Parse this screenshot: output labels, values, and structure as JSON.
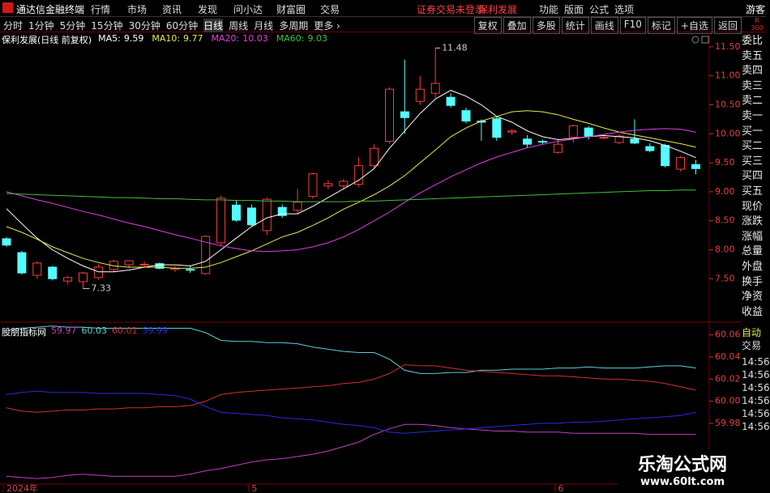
{
  "menu_bar": {
    "app_name": "通达信金融终端",
    "menus": [
      "行情",
      "市场",
      "资讯",
      "发现",
      "问小达",
      "财富圈",
      "交易"
    ],
    "notice": "证券交易未登录",
    "stock": "保利发展",
    "right_menus": [
      "功能",
      "版面",
      "公式",
      "选项"
    ],
    "user": "游客"
  },
  "toolbar": {
    "periods": [
      "分时",
      "1分钟",
      "5分钟",
      "15分钟",
      "30分钟",
      "60分钟",
      "日线",
      "周线",
      "月线",
      "多周期",
      "更多 ›"
    ],
    "buttons": [
      "复权",
      "叠加",
      "多股",
      "统计",
      "画线",
      "F10",
      "标记",
      "+自选",
      "返回"
    ],
    "badge": [
      "R",
      "300"
    ]
  },
  "side_panel": {
    "labels": [
      "委比",
      "卖五",
      "卖四",
      "卖三",
      "卖二",
      "卖一",
      "买一",
      "买二",
      "买三",
      "买四",
      "买五",
      "现价",
      "涨跌",
      "涨幅",
      "总量",
      "外盘",
      "换手",
      "净资",
      "收益"
    ],
    "trade_header": [
      "自动",
      "交易"
    ],
    "times": [
      "14:56",
      "14:56",
      "14:56",
      "14:56",
      "14:56",
      "14:56"
    ]
  },
  "watermark": {
    "title": "乐淘公式网",
    "url": "www.60lt.com"
  },
  "chart_data": [
    {
      "type": "candlestick",
      "title": "保利发展(日线 前复权)",
      "categories": [
        "2024年",
        null,
        null,
        null,
        null,
        null,
        null,
        null,
        null,
        null,
        null,
        null,
        null,
        null,
        null,
        null,
        "5",
        null,
        null,
        null,
        null,
        null,
        null,
        null,
        null,
        null,
        null,
        null,
        null,
        null,
        null,
        null,
        null,
        null,
        null,
        null,
        "6",
        null,
        null,
        null,
        null,
        null,
        null,
        null,
        null,
        null
      ],
      "open": [
        8.19,
        7.95,
        7.56,
        7.7,
        7.46,
        7.45,
        7.52,
        7.66,
        7.74,
        7.74,
        7.76,
        7.66,
        7.66,
        7.59,
        8.12,
        8.77,
        8.72,
        8.33,
        8.73,
        8.68,
        8.92,
        9.1,
        9.1,
        9.13,
        9.45,
        9.87,
        10.38,
        10.56,
        10.7,
        10.63,
        10.4,
        10.22,
        10.26,
        10.03,
        9.91,
        9.87,
        9.68,
        9.94,
        10.1,
        9.93,
        9.85,
        9.91,
        9.78,
        9.8,
        9.39,
        9.47
      ],
      "high": [
        8.22,
        7.98,
        7.8,
        7.72,
        7.55,
        7.62,
        7.75,
        7.83,
        7.82,
        7.8,
        7.78,
        7.72,
        7.72,
        8.25,
        8.93,
        8.85,
        8.78,
        8.9,
        8.78,
        9.05,
        9.33,
        9.2,
        9.22,
        9.6,
        9.82,
        10.8,
        11.28,
        11.0,
        11.48,
        10.7,
        10.45,
        10.25,
        10.3,
        10.08,
        9.98,
        9.9,
        9.9,
        10.16,
        10.13,
        9.98,
        10.0,
        10.25,
        9.84,
        9.83,
        9.62,
        9.55
      ],
      "low": [
        8.05,
        7.57,
        7.5,
        7.47,
        7.4,
        7.33,
        7.48,
        7.62,
        7.68,
        7.7,
        7.66,
        7.62,
        7.6,
        7.57,
        8.08,
        8.48,
        8.4,
        8.25,
        8.55,
        8.63,
        8.88,
        9.05,
        9.06,
        9.08,
        9.4,
        9.83,
        10.0,
        10.5,
        10.62,
        10.45,
        10.18,
        9.88,
        9.88,
        9.98,
        9.76,
        9.82,
        9.66,
        9.85,
        9.9,
        9.9,
        9.82,
        9.82,
        9.68,
        9.42,
        9.35,
        9.3
      ],
      "close": [
        8.08,
        7.6,
        7.77,
        7.5,
        7.52,
        7.6,
        7.7,
        7.8,
        7.81,
        7.75,
        7.68,
        7.68,
        7.65,
        8.23,
        8.89,
        8.51,
        8.43,
        8.87,
        8.59,
        8.82,
        9.31,
        9.14,
        9.18,
        9.45,
        9.75,
        10.77,
        10.28,
        10.77,
        10.87,
        10.49,
        10.22,
        10.2,
        9.94,
        10.05,
        9.82,
        9.86,
        9.82,
        10.14,
        9.96,
        9.94,
        9.96,
        9.84,
        9.71,
        9.45,
        9.59,
        9.4
      ],
      "up_color": "#ff3c3c",
      "down_color": "#54fcfc",
      "series": [
        {
          "name": "MA5:",
          "color": "#ffffff",
          "values": [
            8.71,
            8.45,
            8.2,
            8.0,
            7.85,
            7.72,
            7.62,
            7.62,
            7.65,
            7.7,
            7.74,
            7.74,
            7.72,
            7.8,
            8.0,
            8.2,
            8.4,
            8.55,
            8.62,
            8.62,
            8.75,
            8.9,
            9.05,
            9.2,
            9.4,
            9.75,
            10.05,
            10.35,
            10.6,
            10.75,
            10.65,
            10.5,
            10.3,
            10.2,
            10.05,
            9.95,
            9.9,
            9.92,
            9.95,
            9.97,
            9.95,
            9.93,
            9.88,
            9.8,
            9.7,
            9.59
          ]
        },
        {
          "name": "MA10:",
          "color": "#e8e84a",
          "values": [
            8.4,
            8.3,
            8.18,
            8.05,
            7.95,
            7.85,
            7.78,
            7.72,
            7.7,
            7.7,
            7.7,
            7.68,
            7.68,
            7.7,
            7.78,
            7.88,
            7.98,
            8.1,
            8.22,
            8.3,
            8.42,
            8.55,
            8.7,
            8.82,
            8.95,
            9.1,
            9.28,
            9.5,
            9.72,
            9.95,
            10.1,
            10.22,
            10.3,
            10.38,
            10.4,
            10.38,
            10.33,
            10.25,
            10.18,
            10.1,
            10.03,
            9.98,
            9.93,
            9.88,
            9.83,
            9.77
          ]
        },
        {
          "name": "MA20:",
          "color": "#e040e0",
          "values": [
            9.0,
            8.93,
            8.86,
            8.8,
            8.73,
            8.66,
            8.6,
            8.53,
            8.46,
            8.4,
            8.33,
            8.26,
            8.2,
            8.13,
            8.07,
            8.02,
            7.98,
            7.97,
            7.98,
            8.0,
            8.05,
            8.12,
            8.22,
            8.35,
            8.5,
            8.65,
            8.82,
            8.98,
            9.12,
            9.26,
            9.38,
            9.5,
            9.6,
            9.68,
            9.76,
            9.82,
            9.87,
            9.91,
            9.95,
            9.99,
            10.03,
            10.06,
            10.08,
            10.09,
            10.08,
            10.03
          ]
        },
        {
          "name": "MA60:",
          "color": "#40c040",
          "values": [
            8.97,
            8.96,
            8.95,
            8.94,
            8.93,
            8.92,
            8.91,
            8.9,
            8.9,
            8.89,
            8.88,
            8.88,
            8.87,
            8.86,
            8.86,
            8.85,
            8.85,
            8.84,
            8.84,
            8.83,
            8.83,
            8.83,
            8.83,
            8.84,
            8.84,
            8.85,
            8.86,
            8.87,
            8.88,
            8.89,
            8.9,
            8.91,
            8.92,
            8.93,
            8.94,
            8.95,
            8.96,
            8.97,
            8.98,
            8.99,
            9.0,
            9.01,
            9.02,
            9.02,
            9.03,
            9.03
          ]
        }
      ],
      "ylim": [
        6.75,
        11.75
      ],
      "yticks": [
        {
          "value": 7.5,
          "label": "7.50"
        },
        {
          "value": 8,
          "label": "8.00"
        },
        {
          "value": 8.5,
          "label": "8.50"
        },
        {
          "value": 9,
          "label": "9.00"
        },
        {
          "value": 9.5,
          "label": "9.50"
        },
        {
          "value": 10,
          "label": "10.00"
        },
        {
          "value": 10.5,
          "label": "10.50"
        },
        {
          "value": 11,
          "label": "11.00"
        },
        {
          "value": 11.5,
          "label": "11.50"
        }
      ],
      "grid": false
    },
    {
      "type": "line",
      "title": "股朋指标网",
      "series": [
        {
          "color": "#c040c0",
          "values": [
            59.932,
            59.931,
            59.93,
            59.931,
            59.933,
            59.934,
            59.933,
            59.932,
            59.932,
            59.932,
            59.932,
            59.932,
            59.934,
            59.937,
            59.939,
            59.942,
            59.945,
            59.947,
            59.948,
            59.95,
            59.952,
            59.955,
            59.959,
            59.963,
            59.97,
            59.975,
            59.979,
            59.979,
            59.978,
            59.976,
            59.975,
            59.974,
            59.973,
            59.973,
            59.972,
            59.972,
            59.972,
            59.971,
            59.971,
            59.971,
            59.971,
            59.971,
            59.97,
            59.97,
            59.97,
            59.97
          ]
        },
        {
          "color": "#5ad0d8",
          "values": [
            60.064,
            60.066,
            60.067,
            60.068,
            60.067,
            60.067,
            60.066,
            60.066,
            60.066,
            60.066,
            60.066,
            60.066,
            60.066,
            60.062,
            60.055,
            60.054,
            60.054,
            60.053,
            60.053,
            60.052,
            60.049,
            60.047,
            60.045,
            60.044,
            60.044,
            60.038,
            60.028,
            60.025,
            60.025,
            60.026,
            60.026,
            60.028,
            60.028,
            60.029,
            60.029,
            60.029,
            60.03,
            60.03,
            60.031,
            60.03,
            60.03,
            60.03,
            60.031,
            60.032,
            60.032,
            60.03
          ]
        },
        {
          "color": "#d03030",
          "values": [
            59.994,
            59.991,
            59.99,
            59.991,
            59.992,
            59.992,
            59.993,
            59.993,
            59.994,
            59.994,
            59.995,
            59.995,
            59.996,
            60.0,
            60.006,
            60.008,
            60.009,
            60.01,
            60.011,
            60.012,
            60.013,
            60.014,
            60.016,
            60.017,
            60.02,
            60.025,
            60.033,
            60.032,
            60.032,
            60.03,
            60.028,
            60.027,
            60.026,
            60.025,
            60.024,
            60.023,
            60.023,
            60.022,
            60.021,
            60.02,
            60.02,
            60.019,
            60.018,
            60.016,
            60.013,
            60.01
          ]
        },
        {
          "color": "#2a2ae0",
          "values": [
            60.006,
            60.008,
            60.009,
            60.008,
            60.008,
            60.008,
            60.007,
            60.007,
            60.007,
            60.007,
            60.006,
            60.005,
            60.002,
            59.995,
            59.99,
            59.989,
            59.988,
            59.987,
            59.985,
            59.984,
            59.983,
            59.981,
            59.979,
            59.978,
            59.976,
            59.972,
            59.971,
            59.972,
            59.973,
            59.974,
            59.975,
            59.976,
            59.977,
            59.978,
            59.979,
            59.98,
            59.98,
            59.981,
            59.981,
            59.982,
            59.983,
            59.984,
            59.985,
            59.986,
            59.987,
            59.99
          ]
        }
      ],
      "ylim": [
        59.925,
        60.07
      ],
      "yticks": [
        59.98,
        {
          "value": 60,
          "label": "60.00"
        },
        60.02,
        60.04,
        60.06
      ]
    }
  ]
}
